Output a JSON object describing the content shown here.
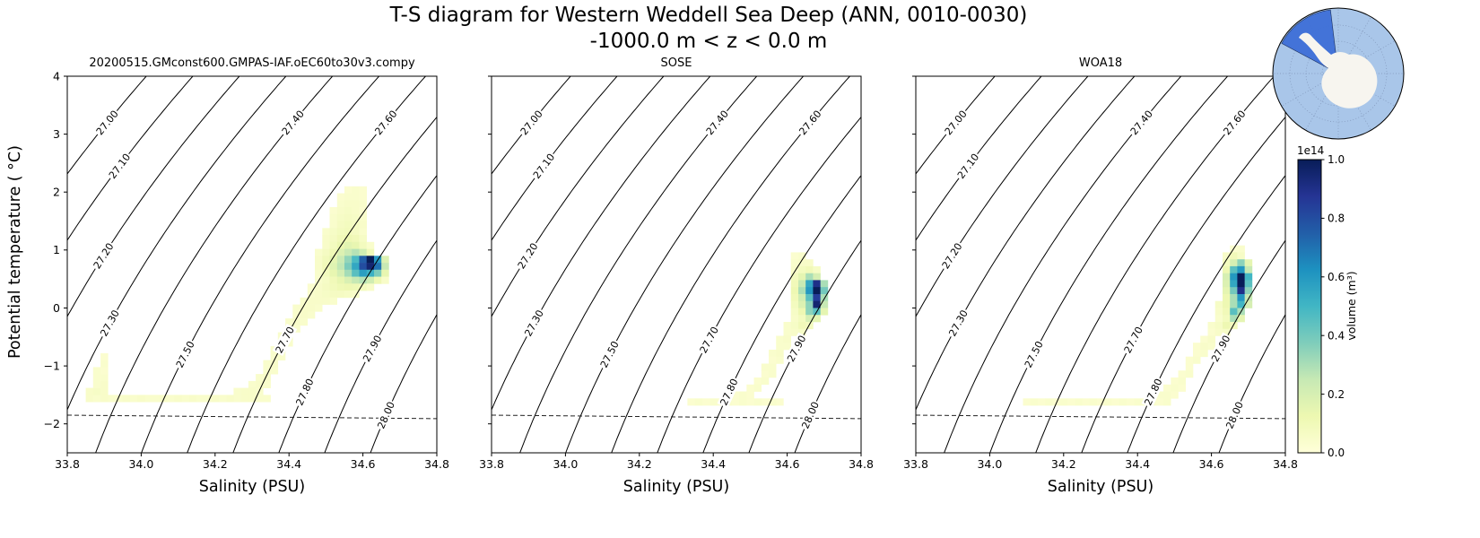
{
  "chart_data": {
    "type": "heatmap",
    "title": "T-S diagram for Western Weddell Sea Deep (ANN, 0010-0030)",
    "subtitle": "-1000.0 m < z < 0.0 m",
    "xlabel": "Salinity (PSU)",
    "ylabel": "Potential temperature ( °C)",
    "xlim": [
      33.8,
      34.8
    ],
    "ylim": [
      -2.5,
      4.0
    ],
    "x_tick_values": [
      33.8,
      34.0,
      34.2,
      34.4,
      34.6,
      34.8
    ],
    "x_tick_labels": [
      "33.8",
      "34.0",
      "34.2",
      "34.4",
      "34.6",
      "34.8"
    ],
    "y_tick_values": [
      4,
      3,
      2,
      1,
      0,
      -1,
      -2
    ],
    "y_tick_labels": [
      "4",
      "3",
      "2",
      "1",
      "0",
      "−1",
      "−2"
    ],
    "isopycnals": {
      "levels": [
        27.0,
        27.1,
        27.2,
        27.3,
        27.4,
        27.5,
        27.6,
        27.7,
        27.8,
        27.9,
        28.0
      ],
      "labels": [
        "27.00",
        "27.10",
        "27.20",
        "27.30",
        "27.40",
        "27.50",
        "27.60",
        "27.70",
        "27.80",
        "27.90",
        "28.00"
      ],
      "label_t": [
        3.2,
        2.45,
        0.9,
        -0.26,
        3.2,
        -0.8,
        3.2,
        -0.55,
        -1.45,
        -0.7,
        -1.85
      ]
    },
    "freezing_line": {
      "t_at_smin": -1.85,
      "t_at_smax": -1.91
    },
    "colormap_stops": [
      "#ffffd9",
      "#edf8b1",
      "#c7e9b4",
      "#7fcdbb",
      "#41b6c4",
      "#1d91c0",
      "#225ea8",
      "#253494",
      "#081d58"
    ],
    "colorbar": {
      "label": "volume (m³)",
      "exponent": "1e14",
      "tick_values": [
        0.0,
        0.2,
        0.4,
        0.6,
        0.8,
        1.0
      ],
      "tick_labels": [
        "0.0",
        "0.2",
        "0.4",
        "0.6",
        "0.8",
        "1.0"
      ]
    },
    "panels": [
      {
        "title": "20200515.GMconst600.GMPAS-IAF.oEC60to30v3.compy",
        "heatmap": {
          "ds": 0.02,
          "dt": 0.12,
          "rows": [
            {
              "t": 2.04,
              "s0": 34.56,
              "v": [
                0.03,
                0.04,
                0.03
              ]
            },
            {
              "t": 1.92,
              "s0": 34.54,
              "v": [
                0.03,
                0.04,
                0.04,
                0.03
              ]
            },
            {
              "t": 1.8,
              "s0": 34.54,
              "v": [
                0.04,
                0.05,
                0.05,
                0.04
              ]
            },
            {
              "t": 1.68,
              "s0": 34.52,
              "v": [
                0.03,
                0.05,
                0.06,
                0.05,
                0.03
              ]
            },
            {
              "t": 1.56,
              "s0": 34.52,
              "v": [
                0.04,
                0.06,
                0.07,
                0.06,
                0.04
              ]
            },
            {
              "t": 1.44,
              "s0": 34.52,
              "v": [
                0.04,
                0.07,
                0.08,
                0.07,
                0.05
              ]
            },
            {
              "t": 1.32,
              "s0": 34.5,
              "v": [
                0.04,
                0.06,
                0.08,
                0.09,
                0.07,
                0.04
              ]
            },
            {
              "t": 1.2,
              "s0": 34.5,
              "v": [
                0.05,
                0.07,
                0.1,
                0.12,
                0.1,
                0.06
              ]
            },
            {
              "t": 1.08,
              "s0": 34.5,
              "v": [
                0.05,
                0.08,
                0.13,
                0.16,
                0.14,
                0.08,
                0.04
              ]
            },
            {
              "t": 0.96,
              "s0": 34.48,
              "v": [
                0.04,
                0.07,
                0.11,
                0.18,
                0.24,
                0.28,
                0.22,
                0.1
              ]
            },
            {
              "t": 0.84,
              "s0": 34.48,
              "v": [
                0.05,
                0.09,
                0.15,
                0.24,
                0.34,
                0.48,
                0.75,
                1.0,
                0.6,
                0.18
              ]
            },
            {
              "t": 0.72,
              "s0": 34.48,
              "v": [
                0.05,
                0.1,
                0.17,
                0.26,
                0.38,
                0.55,
                0.8,
                0.95,
                0.7,
                0.25
              ]
            },
            {
              "t": 0.6,
              "s0": 34.48,
              "v": [
                0.04,
                0.08,
                0.14,
                0.21,
                0.31,
                0.45,
                0.58,
                0.52,
                0.38,
                0.14
              ]
            },
            {
              "t": 0.48,
              "s0": 34.48,
              "v": [
                0.04,
                0.06,
                0.1,
                0.14,
                0.19,
                0.25,
                0.28,
                0.22,
                0.12,
                0.05
              ]
            },
            {
              "t": 0.36,
              "s0": 34.46,
              "v": [
                0.03,
                0.05,
                0.07,
                0.09,
                0.11,
                0.12,
                0.11,
                0.08,
                0.05
              ]
            },
            {
              "t": 0.24,
              "s0": 34.46,
              "v": [
                0.04,
                0.05,
                0.06,
                0.07,
                0.07,
                0.06,
                0.05
              ]
            },
            {
              "t": 0.12,
              "s0": 34.44,
              "v": [
                0.04,
                0.05,
                0.05,
                0.05,
                0.04
              ]
            },
            {
              "t": 0.0,
              "s0": 34.42,
              "v": [
                0.04,
                0.05,
                0.05,
                0.04
              ]
            },
            {
              "t": -0.12,
              "s0": 34.42,
              "v": [
                0.04,
                0.05,
                0.04
              ]
            },
            {
              "t": -0.24,
              "s0": 34.4,
              "v": [
                0.04,
                0.05,
                0.04
              ]
            },
            {
              "t": -0.36,
              "s0": 34.4,
              "v": [
                0.04,
                0.04
              ]
            },
            {
              "t": -0.48,
              "s0": 34.38,
              "v": [
                0.04,
                0.05
              ]
            },
            {
              "t": -0.6,
              "s0": 34.38,
              "v": [
                0.04,
                0.04
              ]
            },
            {
              "t": -0.72,
              "s0": 34.36,
              "v": [
                0.04,
                0.05
              ]
            },
            {
              "t": -0.84,
              "s0": 34.36,
              "v": [
                0.04,
                0.04
              ]
            },
            {
              "t": -0.96,
              "s0": 34.34,
              "v": [
                0.04,
                0.05
              ]
            },
            {
              "t": -1.08,
              "s0": 34.34,
              "v": [
                0.04,
                0.04
              ]
            },
            {
              "t": -1.2,
              "s0": 34.32,
              "v": [
                0.04,
                0.05
              ]
            },
            {
              "t": -1.32,
              "s0": 34.3,
              "v": [
                0.04,
                0.05,
                0.04
              ]
            },
            {
              "t": -1.44,
              "s0": 34.26,
              "v": [
                0.04,
                0.05,
                0.05,
                0.04
              ]
            },
            {
              "t": -1.56,
              "s0": 33.86,
              "v": [
                0.05,
                0.04,
                0.05,
                0.04,
                0.04,
                0.05,
                0.04,
                0.05,
                0.04,
                0.04,
                0.05,
                0.04,
                0.05,
                0.04,
                0.05,
                0.04,
                0.04,
                0.05,
                0.04,
                0.05,
                0.04,
                0.05,
                0.05,
                0.04,
                0.04
              ]
            },
            {
              "t": -1.44,
              "s0": 33.86,
              "v": [
                0.05,
                0.06,
                0.05
              ]
            },
            {
              "t": -1.32,
              "s0": 33.88,
              "v": [
                0.04,
                0.05
              ]
            },
            {
              "t": -1.2,
              "s0": 33.88,
              "v": [
                0.04,
                0.04
              ]
            },
            {
              "t": -1.08,
              "s0": 33.88,
              "v": [
                0.04,
                0.03
              ]
            },
            {
              "t": -0.96,
              "s0": 33.9,
              "v": [
                0.04
              ]
            },
            {
              "t": -0.84,
              "s0": 33.9,
              "v": [
                0.03
              ]
            }
          ]
        }
      },
      {
        "title": "SOSE",
        "heatmap": {
          "ds": 0.02,
          "dt": 0.12,
          "rows": [
            {
              "t": 0.9,
              "s0": 34.62,
              "v": [
                0.03,
                0.04
              ]
            },
            {
              "t": 0.78,
              "s0": 34.62,
              "v": [
                0.04,
                0.05,
                0.05
              ]
            },
            {
              "t": 0.66,
              "s0": 34.62,
              "v": [
                0.05,
                0.08,
                0.1,
                0.06
              ]
            },
            {
              "t": 0.54,
              "s0": 34.62,
              "v": [
                0.08,
                0.15,
                0.3,
                0.2
              ]
            },
            {
              "t": 0.42,
              "s0": 34.62,
              "v": [
                0.1,
                0.25,
                0.55,
                0.9,
                0.3
              ]
            },
            {
              "t": 0.3,
              "s0": 34.62,
              "v": [
                0.12,
                0.3,
                0.6,
                1.0,
                0.4
              ]
            },
            {
              "t": 0.18,
              "s0": 34.62,
              "v": [
                0.1,
                0.22,
                0.45,
                0.85,
                0.3
              ]
            },
            {
              "t": 0.06,
              "s0": 34.62,
              "v": [
                0.08,
                0.18,
                0.35,
                0.95,
                0.25
              ]
            },
            {
              "t": -0.06,
              "s0": 34.62,
              "v": [
                0.06,
                0.12,
                0.35,
                0.45,
                0.15
              ]
            },
            {
              "t": -0.18,
              "s0": 34.62,
              "v": [
                0.05,
                0.08,
                0.2,
                0.15
              ]
            },
            {
              "t": -0.3,
              "s0": 34.6,
              "v": [
                0.04,
                0.06,
                0.1,
                0.08
              ]
            },
            {
              "t": -0.42,
              "s0": 34.6,
              "v": [
                0.04,
                0.05,
                0.06
              ]
            },
            {
              "t": -0.54,
              "s0": 34.58,
              "v": [
                0.04,
                0.05
              ]
            },
            {
              "t": -0.66,
              "s0": 34.58,
              "v": [
                0.04,
                0.04
              ]
            },
            {
              "t": -0.78,
              "s0": 34.56,
              "v": [
                0.04,
                0.05
              ]
            },
            {
              "t": -0.9,
              "s0": 34.56,
              "v": [
                0.03,
                0.04
              ]
            },
            {
              "t": -1.02,
              "s0": 34.54,
              "v": [
                0.04,
                0.04
              ]
            },
            {
              "t": -1.14,
              "s0": 34.54,
              "v": [
                0.03,
                0.04
              ]
            },
            {
              "t": -1.26,
              "s0": 34.52,
              "v": [
                0.03,
                0.04
              ]
            },
            {
              "t": -1.38,
              "s0": 34.5,
              "v": [
                0.03,
                0.04
              ]
            },
            {
              "t": -1.5,
              "s0": 34.46,
              "v": [
                0.03,
                0.04,
                0.03
              ]
            },
            {
              "t": -1.62,
              "s0": 34.34,
              "v": [
                0.03,
                0.04,
                0.03,
                0.04,
                0.03,
                0.04,
                0.03,
                0.04,
                0.03,
                0.04,
                0.03,
                0.04,
                0.03
              ]
            }
          ]
        }
      },
      {
        "title": "WOA18",
        "heatmap": {
          "ds": 0.02,
          "dt": 0.12,
          "rows": [
            {
              "t": 1.02,
              "s0": 34.66,
              "v": [
                0.03,
                0.04
              ]
            },
            {
              "t": 0.9,
              "s0": 34.64,
              "v": [
                0.05,
                0.1,
                0.06
              ]
            },
            {
              "t": 0.78,
              "s0": 34.64,
              "v": [
                0.08,
                0.2,
                0.35,
                0.15
              ]
            },
            {
              "t": 0.66,
              "s0": 34.64,
              "v": [
                0.12,
                0.45,
                0.6,
                0.25
              ]
            },
            {
              "t": 0.54,
              "s0": 34.64,
              "v": [
                0.2,
                0.6,
                1.0,
                0.5
              ]
            },
            {
              "t": 0.42,
              "s0": 34.64,
              "v": [
                0.18,
                0.55,
                1.0,
                0.45
              ]
            },
            {
              "t": 0.3,
              "s0": 34.64,
              "v": [
                0.15,
                0.4,
                0.9,
                0.35
              ]
            },
            {
              "t": 0.18,
              "s0": 34.64,
              "v": [
                0.12,
                0.3,
                0.6,
                0.25
              ]
            },
            {
              "t": 0.06,
              "s0": 34.62,
              "v": [
                0.06,
                0.12,
                0.3,
                0.5,
                0.2
              ]
            },
            {
              "t": -0.06,
              "s0": 34.62,
              "v": [
                0.05,
                0.1,
                0.45,
                0.3
              ]
            },
            {
              "t": -0.18,
              "s0": 34.62,
              "v": [
                0.04,
                0.08,
                0.3,
                0.15
              ]
            },
            {
              "t": -0.3,
              "s0": 34.6,
              "v": [
                0.04,
                0.06,
                0.12,
                0.08
              ]
            },
            {
              "t": -0.42,
              "s0": 34.6,
              "v": [
                0.03,
                0.05,
                0.06
              ]
            },
            {
              "t": -0.54,
              "s0": 34.58,
              "v": [
                0.03,
                0.05
              ]
            },
            {
              "t": -0.66,
              "s0": 34.56,
              "v": [
                0.03,
                0.05,
                0.04
              ]
            },
            {
              "t": -0.78,
              "s0": 34.56,
              "v": [
                0.03,
                0.04
              ]
            },
            {
              "t": -0.9,
              "s0": 34.54,
              "v": [
                0.03,
                0.04
              ]
            },
            {
              "t": -1.02,
              "s0": 34.54,
              "v": [
                0.03
              ]
            },
            {
              "t": -1.14,
              "s0": 34.52,
              "v": [
                0.03,
                0.04
              ]
            },
            {
              "t": -1.26,
              "s0": 34.5,
              "v": [
                0.03,
                0.04
              ]
            },
            {
              "t": -1.38,
              "s0": 34.48,
              "v": [
                0.03,
                0.04,
                0.03
              ]
            },
            {
              "t": -1.5,
              "s0": 34.44,
              "v": [
                0.03,
                0.04,
                0.04,
                0.03
              ]
            },
            {
              "t": -1.62,
              "s0": 34.1,
              "v": [
                0.03,
                0.04,
                0.03,
                0.04,
                0.03,
                0.04,
                0.03,
                0.04,
                0.03,
                0.04,
                0.03,
                0.04,
                0.03,
                0.04,
                0.03,
                0.04,
                0.03,
                0.04,
                0.03,
                0.04
              ]
            }
          ]
        }
      }
    ]
  },
  "inset_map": {
    "ocean_color": "#a9c6e9",
    "land_color": "#f7f5ef",
    "region_color": "#3d6fd7",
    "graticule_color": "#7f94b8"
  }
}
